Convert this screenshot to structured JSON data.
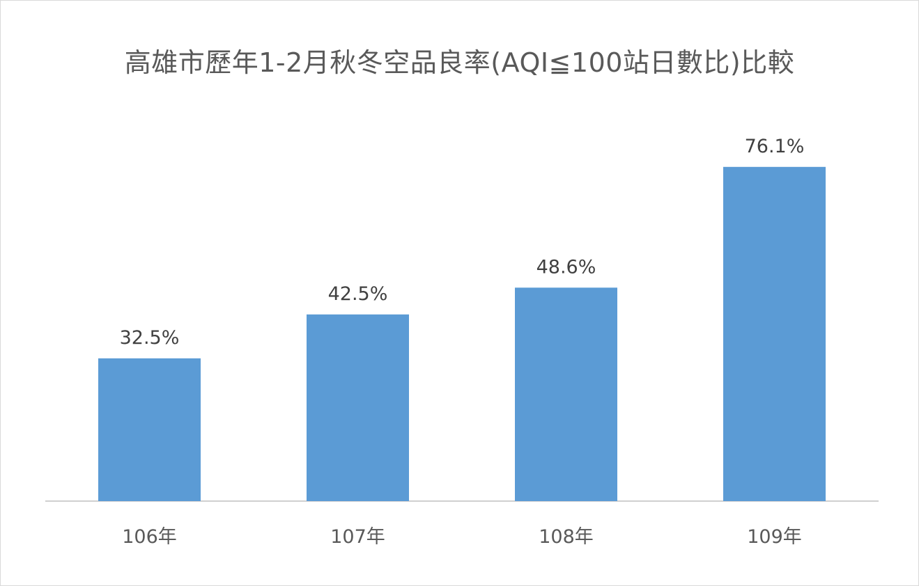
{
  "chart_data": {
    "type": "bar",
    "title": "高雄市歷年1-2月秋冬空品良率(AQI≦100站日數比)比較",
    "categories": [
      "106年",
      "107年",
      "108年",
      "109年"
    ],
    "values": [
      32.5,
      42.5,
      48.6,
      76.1
    ],
    "data_labels": [
      "32.5%",
      "42.5%",
      "48.6%",
      "76.1%"
    ],
    "unit": "%",
    "ylim": [
      0,
      100
    ],
    "grid": false,
    "legend": "none",
    "bar_color": "#5b9bd5",
    "axis_color": "#bfbfbf"
  }
}
